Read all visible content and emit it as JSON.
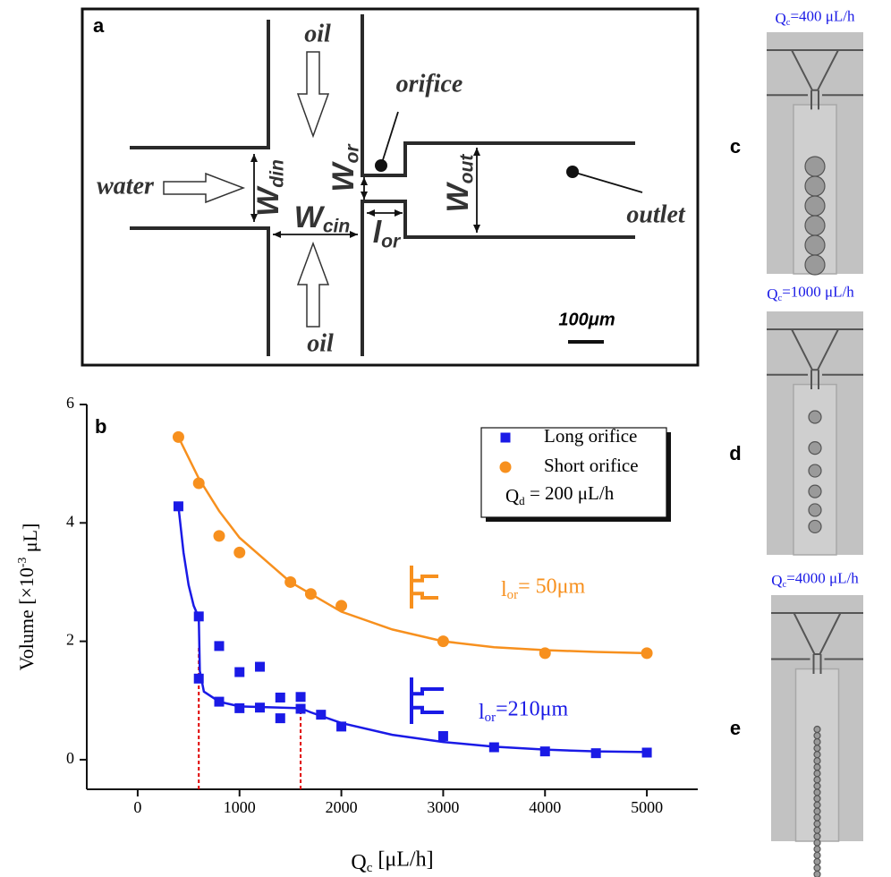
{
  "panel_a": {
    "label": "a",
    "labels": {
      "oil_top": "oil",
      "oil_bottom": "oil",
      "orifice": "orifice",
      "water": "water",
      "outlet": "outlet",
      "scale_bar": "100μm"
    },
    "dimensions": [
      {
        "symbol": "W",
        "subscript": "din"
      },
      {
        "symbol": "W",
        "subscript": "cin"
      },
      {
        "symbol": "W",
        "subscript": "or"
      },
      {
        "symbol": "l",
        "subscript": "or"
      },
      {
        "symbol": "W",
        "subscript": "out"
      }
    ]
  },
  "chart_data": {
    "type": "scatter",
    "panel_label": "b",
    "x_label": {
      "symbol": "Q",
      "subscript": "c",
      "unit": " [μL/h]"
    },
    "y_label": {
      "before": "Volume [×10",
      "superscript": "-3",
      "after": " μL]"
    },
    "xlim": [
      -500,
      5500
    ],
    "ylim": [
      -0.5,
      6
    ],
    "xticks": [
      0,
      1000,
      2000,
      3000,
      4000,
      5000
    ],
    "yticks": [
      0,
      2,
      4,
      6
    ],
    "legend": "upper right",
    "legend_note": {
      "symbol": "Q",
      "subscript": "d",
      "text": " = 200 μL/h"
    },
    "series": [
      {
        "name": "Long orifice",
        "color": "#1a1ae6",
        "marker": "square",
        "x": [
          400,
          600,
          600,
          800,
          800,
          1000,
          1000,
          1200,
          1200,
          1400,
          1400,
          1600,
          1600,
          1800,
          2000,
          3000,
          3500,
          4000,
          4500,
          5000
        ],
        "values": [
          4.28,
          2.42,
          1.37,
          1.92,
          0.98,
          1.48,
          0.87,
          1.57,
          0.88,
          1.05,
          0.7,
          1.06,
          0.86,
          0.76,
          0.56,
          0.4,
          0.21,
          0.14,
          0.11,
          0.12
        ]
      },
      {
        "name": "Short orifice",
        "color": "#f7901e",
        "marker": "circle",
        "x": [
          400,
          600,
          800,
          1000,
          1500,
          1700,
          2000,
          3000,
          4000,
          5000
        ],
        "values": [
          5.45,
          4.67,
          3.78,
          3.5,
          3.0,
          2.8,
          2.6,
          2.0,
          1.8,
          1.8
        ]
      }
    ],
    "fit_curves": [
      {
        "color": "#f7901e",
        "x": [
          400,
          600,
          800,
          1000,
          1500,
          2000,
          2500,
          3000,
          3500,
          4000,
          4500,
          5000
        ],
        "values": [
          5.45,
          4.75,
          4.2,
          3.75,
          3.0,
          2.5,
          2.2,
          2.0,
          1.9,
          1.85,
          1.82,
          1.8
        ]
      },
      {
        "color": "#1a1ae6",
        "x": [
          400,
          450,
          500,
          550,
          600,
          610,
          650,
          800,
          1000,
          1600,
          1700,
          2000,
          2500,
          3000,
          3500,
          4000,
          4500,
          5000
        ],
        "values": [
          4.28,
          3.5,
          2.95,
          2.6,
          2.4,
          1.5,
          1.15,
          0.98,
          0.9,
          0.87,
          0.8,
          0.62,
          0.42,
          0.3,
          0.22,
          0.17,
          0.14,
          0.13
        ]
      }
    ],
    "reference_lines": {
      "color": "#e00000",
      "x": [
        600,
        1600
      ],
      "values": [
        1.9,
        1.0
      ]
    },
    "annotations": [
      {
        "symbol": "l",
        "subscript": "or",
        "text": "= 50μm",
        "color": "#f7901e"
      },
      {
        "symbol": "l",
        "subscript": "or",
        "text": "=210μm",
        "color": "#1a1ae6"
      }
    ]
  },
  "micrographs": [
    {
      "label": "c",
      "caption": {
        "symbol": "Q",
        "subscript": "c",
        "text": "=400 μL/h"
      }
    },
    {
      "label": "d",
      "caption": {
        "symbol": "Q",
        "subscript": "c",
        "text": "=1000 μL/h"
      }
    },
    {
      "label": "e",
      "caption": {
        "symbol": "Q",
        "subscript": "c",
        "text": "=4000 μL/h"
      }
    }
  ]
}
